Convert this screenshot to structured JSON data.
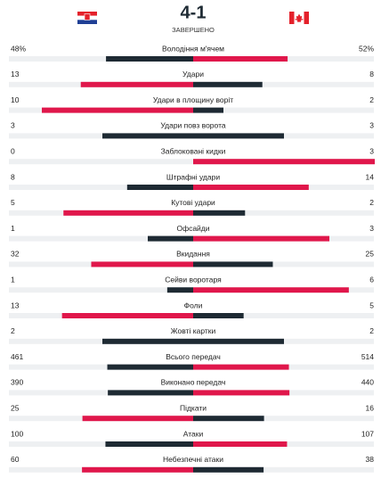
{
  "header": {
    "score": "4-1",
    "status": "ЗАВЕРШЕНО"
  },
  "stats": [
    {
      "label": "Володіння м'ячем",
      "home": 48,
      "away": 52,
      "home_label": "48%",
      "away_label": "52%"
    },
    {
      "label": "Удари",
      "home": 13,
      "away": 8
    },
    {
      "label": "Удари в площину воріт",
      "home": 10,
      "away": 2
    },
    {
      "label": "Удари повз ворота",
      "home": 3,
      "away": 3
    },
    {
      "label": "Заблоковані кидки",
      "home": 0,
      "away": 3
    },
    {
      "label": "Штрафні удари",
      "home": 8,
      "away": 14
    },
    {
      "label": "Кутові удари",
      "home": 5,
      "away": 2
    },
    {
      "label": "Офсайди",
      "home": 1,
      "away": 3
    },
    {
      "label": "Вкидання",
      "home": 32,
      "away": 25
    },
    {
      "label": "Сейви воротаря",
      "home": 1,
      "away": 6
    },
    {
      "label": "Фоли",
      "home": 13,
      "away": 5
    },
    {
      "label": "Жовті картки",
      "home": 2,
      "away": 2
    },
    {
      "label": "Всього передач",
      "home": 461,
      "away": 514
    },
    {
      "label": "Виконано передач",
      "home": 390,
      "away": 440
    },
    {
      "label": "Підкати",
      "home": 25,
      "away": 16
    },
    {
      "label": "Атаки",
      "home": 100,
      "away": 107
    },
    {
      "label": "Небезпечні атаки",
      "home": 60,
      "away": 38
    }
  ]
}
